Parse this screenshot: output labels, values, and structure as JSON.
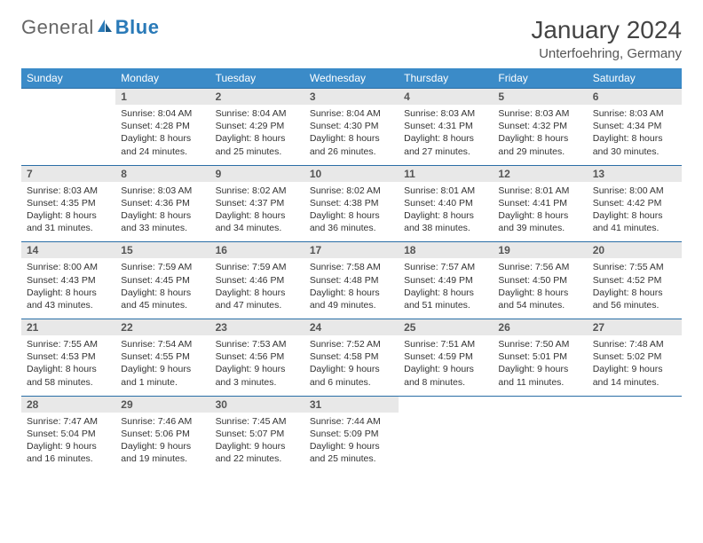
{
  "logo": {
    "text1": "General",
    "text2": "Blue"
  },
  "title": "January 2024",
  "location": "Unterfoehring, Germany",
  "colors": {
    "header_bg": "#3b8bc8",
    "header_text": "#ffffff",
    "daynum_bg": "#e8e8e8",
    "daynum_text": "#555555",
    "border": "#2a6ea6",
    "body_text": "#333333",
    "logo_gray": "#666666",
    "logo_blue": "#2a7ab8"
  },
  "day_headers": [
    "Sunday",
    "Monday",
    "Tuesday",
    "Wednesday",
    "Thursday",
    "Friday",
    "Saturday"
  ],
  "weeks": [
    [
      {
        "n": "",
        "sr": "",
        "ss": "",
        "dl": ""
      },
      {
        "n": "1",
        "sr": "Sunrise: 8:04 AM",
        "ss": "Sunset: 4:28 PM",
        "dl": "Daylight: 8 hours and 24 minutes."
      },
      {
        "n": "2",
        "sr": "Sunrise: 8:04 AM",
        "ss": "Sunset: 4:29 PM",
        "dl": "Daylight: 8 hours and 25 minutes."
      },
      {
        "n": "3",
        "sr": "Sunrise: 8:04 AM",
        "ss": "Sunset: 4:30 PM",
        "dl": "Daylight: 8 hours and 26 minutes."
      },
      {
        "n": "4",
        "sr": "Sunrise: 8:03 AM",
        "ss": "Sunset: 4:31 PM",
        "dl": "Daylight: 8 hours and 27 minutes."
      },
      {
        "n": "5",
        "sr": "Sunrise: 8:03 AM",
        "ss": "Sunset: 4:32 PM",
        "dl": "Daylight: 8 hours and 29 minutes."
      },
      {
        "n": "6",
        "sr": "Sunrise: 8:03 AM",
        "ss": "Sunset: 4:34 PM",
        "dl": "Daylight: 8 hours and 30 minutes."
      }
    ],
    [
      {
        "n": "7",
        "sr": "Sunrise: 8:03 AM",
        "ss": "Sunset: 4:35 PM",
        "dl": "Daylight: 8 hours and 31 minutes."
      },
      {
        "n": "8",
        "sr": "Sunrise: 8:03 AM",
        "ss": "Sunset: 4:36 PM",
        "dl": "Daylight: 8 hours and 33 minutes."
      },
      {
        "n": "9",
        "sr": "Sunrise: 8:02 AM",
        "ss": "Sunset: 4:37 PM",
        "dl": "Daylight: 8 hours and 34 minutes."
      },
      {
        "n": "10",
        "sr": "Sunrise: 8:02 AM",
        "ss": "Sunset: 4:38 PM",
        "dl": "Daylight: 8 hours and 36 minutes."
      },
      {
        "n": "11",
        "sr": "Sunrise: 8:01 AM",
        "ss": "Sunset: 4:40 PM",
        "dl": "Daylight: 8 hours and 38 minutes."
      },
      {
        "n": "12",
        "sr": "Sunrise: 8:01 AM",
        "ss": "Sunset: 4:41 PM",
        "dl": "Daylight: 8 hours and 39 minutes."
      },
      {
        "n": "13",
        "sr": "Sunrise: 8:00 AM",
        "ss": "Sunset: 4:42 PM",
        "dl": "Daylight: 8 hours and 41 minutes."
      }
    ],
    [
      {
        "n": "14",
        "sr": "Sunrise: 8:00 AM",
        "ss": "Sunset: 4:43 PM",
        "dl": "Daylight: 8 hours and 43 minutes."
      },
      {
        "n": "15",
        "sr": "Sunrise: 7:59 AM",
        "ss": "Sunset: 4:45 PM",
        "dl": "Daylight: 8 hours and 45 minutes."
      },
      {
        "n": "16",
        "sr": "Sunrise: 7:59 AM",
        "ss": "Sunset: 4:46 PM",
        "dl": "Daylight: 8 hours and 47 minutes."
      },
      {
        "n": "17",
        "sr": "Sunrise: 7:58 AM",
        "ss": "Sunset: 4:48 PM",
        "dl": "Daylight: 8 hours and 49 minutes."
      },
      {
        "n": "18",
        "sr": "Sunrise: 7:57 AM",
        "ss": "Sunset: 4:49 PM",
        "dl": "Daylight: 8 hours and 51 minutes."
      },
      {
        "n": "19",
        "sr": "Sunrise: 7:56 AM",
        "ss": "Sunset: 4:50 PM",
        "dl": "Daylight: 8 hours and 54 minutes."
      },
      {
        "n": "20",
        "sr": "Sunrise: 7:55 AM",
        "ss": "Sunset: 4:52 PM",
        "dl": "Daylight: 8 hours and 56 minutes."
      }
    ],
    [
      {
        "n": "21",
        "sr": "Sunrise: 7:55 AM",
        "ss": "Sunset: 4:53 PM",
        "dl": "Daylight: 8 hours and 58 minutes."
      },
      {
        "n": "22",
        "sr": "Sunrise: 7:54 AM",
        "ss": "Sunset: 4:55 PM",
        "dl": "Daylight: 9 hours and 1 minute."
      },
      {
        "n": "23",
        "sr": "Sunrise: 7:53 AM",
        "ss": "Sunset: 4:56 PM",
        "dl": "Daylight: 9 hours and 3 minutes."
      },
      {
        "n": "24",
        "sr": "Sunrise: 7:52 AM",
        "ss": "Sunset: 4:58 PM",
        "dl": "Daylight: 9 hours and 6 minutes."
      },
      {
        "n": "25",
        "sr": "Sunrise: 7:51 AM",
        "ss": "Sunset: 4:59 PM",
        "dl": "Daylight: 9 hours and 8 minutes."
      },
      {
        "n": "26",
        "sr": "Sunrise: 7:50 AM",
        "ss": "Sunset: 5:01 PM",
        "dl": "Daylight: 9 hours and 11 minutes."
      },
      {
        "n": "27",
        "sr": "Sunrise: 7:48 AM",
        "ss": "Sunset: 5:02 PM",
        "dl": "Daylight: 9 hours and 14 minutes."
      }
    ],
    [
      {
        "n": "28",
        "sr": "Sunrise: 7:47 AM",
        "ss": "Sunset: 5:04 PM",
        "dl": "Daylight: 9 hours and 16 minutes."
      },
      {
        "n": "29",
        "sr": "Sunrise: 7:46 AM",
        "ss": "Sunset: 5:06 PM",
        "dl": "Daylight: 9 hours and 19 minutes."
      },
      {
        "n": "30",
        "sr": "Sunrise: 7:45 AM",
        "ss": "Sunset: 5:07 PM",
        "dl": "Daylight: 9 hours and 22 minutes."
      },
      {
        "n": "31",
        "sr": "Sunrise: 7:44 AM",
        "ss": "Sunset: 5:09 PM",
        "dl": "Daylight: 9 hours and 25 minutes."
      },
      {
        "n": "",
        "sr": "",
        "ss": "",
        "dl": ""
      },
      {
        "n": "",
        "sr": "",
        "ss": "",
        "dl": ""
      },
      {
        "n": "",
        "sr": "",
        "ss": "",
        "dl": ""
      }
    ]
  ]
}
